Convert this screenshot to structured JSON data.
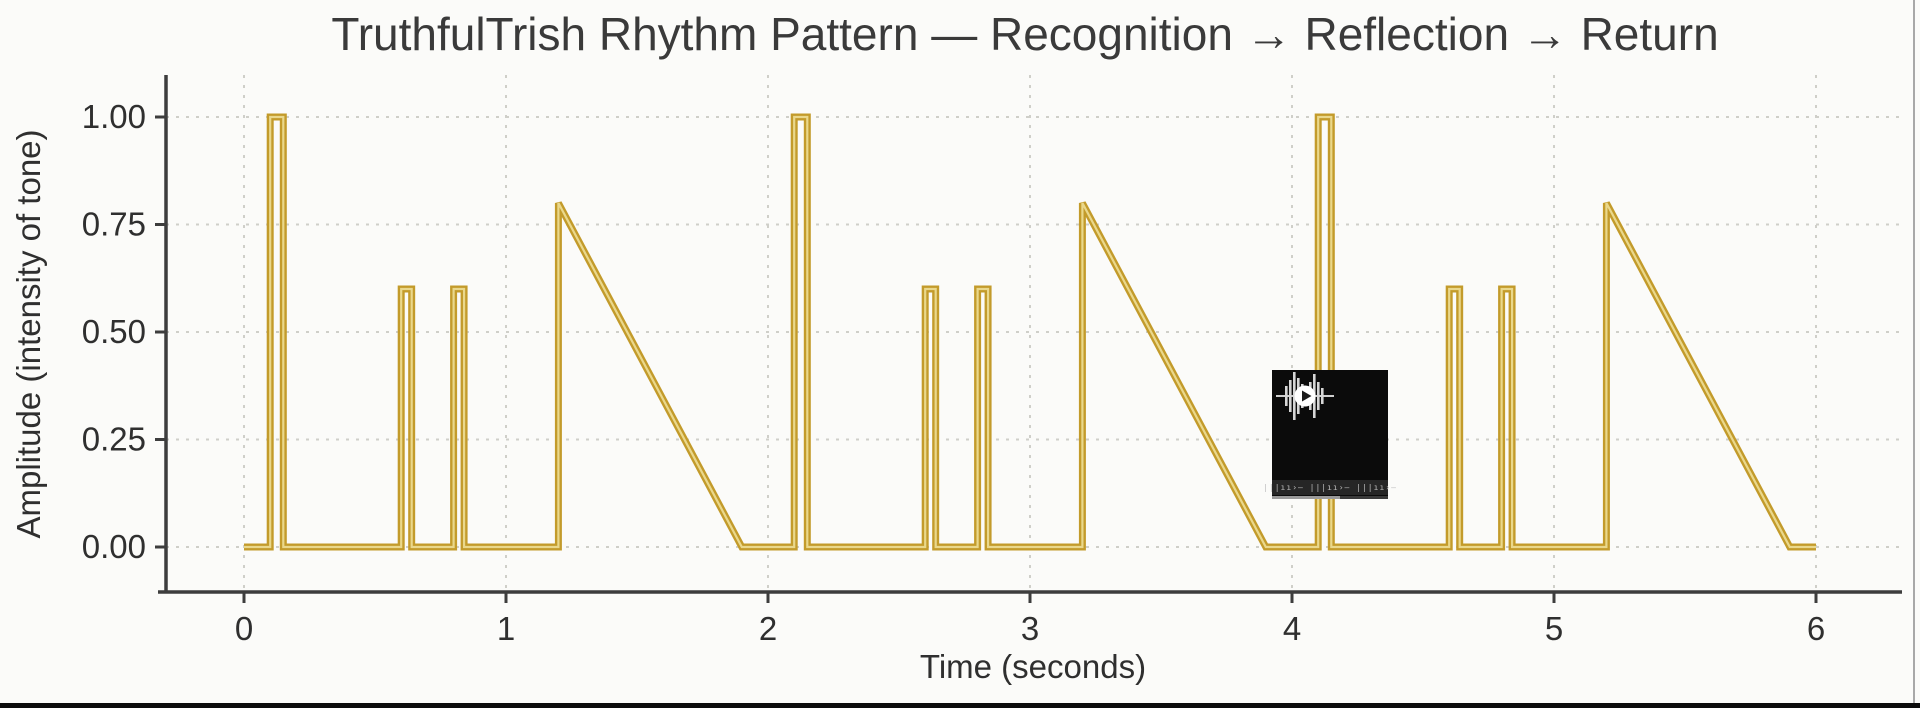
{
  "page": {
    "background_color": "#fbfbf9",
    "bottom_bar_color": "#0c0c0c",
    "right_border_color": "#a8a8a8"
  },
  "chart_data": {
    "type": "line",
    "title": "TruthfulTrish Rhythm Pattern — Recognition → Reflection → Return",
    "xlabel": "Time (seconds)",
    "ylabel": "Amplitude (intensity of tone)",
    "x_ticks": [
      0,
      1,
      2,
      3,
      4,
      5,
      6
    ],
    "x_tick_labels": [
      "0",
      "1",
      "2",
      "3",
      "4",
      "5",
      "6"
    ],
    "y_ticks": [
      0,
      0.25,
      0.5,
      0.75,
      1
    ],
    "y_tick_labels": [
      "0.00",
      "0.25",
      "0.50",
      "0.75",
      "1.00"
    ],
    "xlim": [
      -0.3,
      6.32
    ],
    "ylim": [
      -0.1,
      1.1
    ],
    "grid": "dashed",
    "legend": "none",
    "line_color": "#c39b2b",
    "line_core_color": "#ead88c",
    "axis_color": "#3d3d3d",
    "grid_color": "#cfcfc9",
    "label_color": "#2f2f2f",
    "series": [
      {
        "name": "rhythm",
        "points": [
          [
            0,
            0
          ],
          [
            0.1,
            0
          ],
          [
            0.1,
            1
          ],
          [
            0.15,
            1
          ],
          [
            0.15,
            0
          ],
          [
            0.6,
            0
          ],
          [
            0.6,
            0.6
          ],
          [
            0.64,
            0.6
          ],
          [
            0.64,
            0
          ],
          [
            0.8,
            0
          ],
          [
            0.8,
            0.6
          ],
          [
            0.84,
            0.6
          ],
          [
            0.84,
            0
          ],
          [
            1.2,
            0
          ],
          [
            1.2,
            0.8
          ],
          [
            1.9,
            0
          ],
          [
            2,
            0
          ],
          [
            2.1,
            0
          ],
          [
            2.1,
            1
          ],
          [
            2.15,
            1
          ],
          [
            2.15,
            0
          ],
          [
            2.6,
            0
          ],
          [
            2.6,
            0.6
          ],
          [
            2.64,
            0.6
          ],
          [
            2.64,
            0
          ],
          [
            2.8,
            0
          ],
          [
            2.8,
            0.6
          ],
          [
            2.84,
            0.6
          ],
          [
            2.84,
            0
          ],
          [
            3.2,
            0
          ],
          [
            3.2,
            0.8
          ],
          [
            3.9,
            0
          ],
          [
            4,
            0
          ],
          [
            4.1,
            0
          ],
          [
            4.1,
            1
          ],
          [
            4.15,
            1
          ],
          [
            4.15,
            0
          ],
          [
            4.6,
            0
          ],
          [
            4.6,
            0.6
          ],
          [
            4.64,
            0.6
          ],
          [
            4.64,
            0
          ],
          [
            4.8,
            0
          ],
          [
            4.8,
            0.6
          ],
          [
            4.84,
            0.6
          ],
          [
            4.84,
            0
          ],
          [
            5.2,
            0
          ],
          [
            5.2,
            0.8
          ],
          [
            5.9,
            0
          ],
          [
            6,
            0
          ]
        ]
      }
    ]
  },
  "media_overlay": {
    "kind": "audio-player-thumbnail",
    "background": "#0b0b0b",
    "waveform_text": "|||ıı›–  |||ıı›–  |||ıı›–",
    "progress_percent": 58
  }
}
